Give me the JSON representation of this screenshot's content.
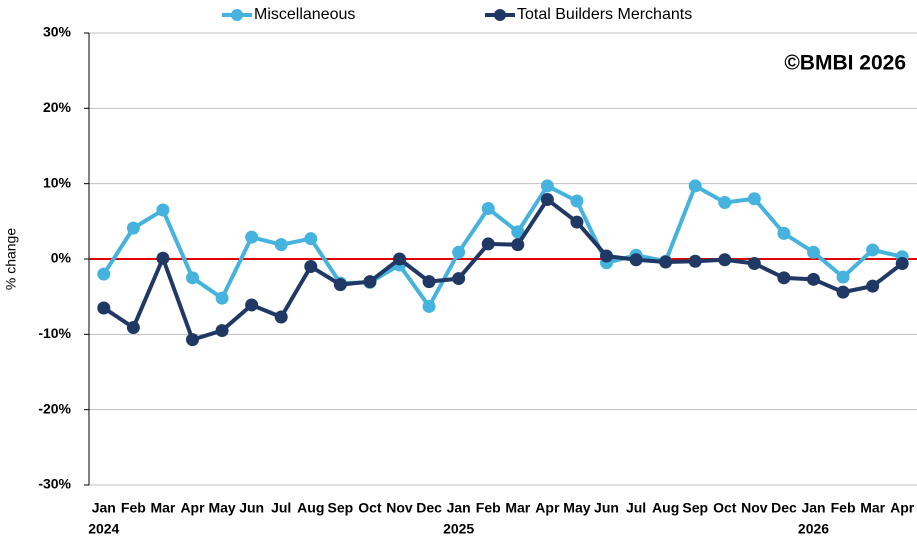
{
  "chart_data": {
    "type": "line",
    "y_label": "% change",
    "annotation": "©BMBI 2026",
    "categories": [
      "Jan",
      "Feb",
      "Mar",
      "Apr",
      "May",
      "Jun",
      "Jul",
      "Aug",
      "Sep",
      "Oct",
      "Nov",
      "Dec",
      "Jan",
      "Feb",
      "Mar",
      "Apr",
      "May",
      "Jun",
      "Jul",
      "Aug",
      "Sep",
      "Oct",
      "Nov",
      "Dec",
      "Jan",
      "Feb",
      "Mar",
      "Apr"
    ],
    "category_years": [
      "2024",
      null,
      null,
      null,
      null,
      null,
      null,
      null,
      null,
      null,
      null,
      null,
      "2025",
      null,
      null,
      null,
      null,
      null,
      null,
      null,
      null,
      null,
      null,
      null,
      "2026",
      null,
      null,
      null
    ],
    "series": [
      {
        "name": "Miscellaneous",
        "color": "#45b3dd",
        "values": [
          -2,
          4.1,
          6.5,
          -2.5,
          -5.2,
          2.9,
          1.9,
          2.7,
          -3.2,
          -3.1,
          -0.8,
          -6.3,
          0.9,
          6.7,
          3.6,
          9.7,
          7.7,
          -0.5,
          0.5,
          -0.3,
          9.7,
          7.5,
          8.0,
          3.4,
          0.9,
          -2.4,
          1.2,
          0.3
        ]
      },
      {
        "name": "Total Builders Merchants",
        "color": "#1f3864",
        "values": [
          -6.5,
          -9.1,
          0.1,
          -10.7,
          -9.5,
          -6.1,
          -7.7,
          -1.0,
          -3.4,
          -3.0,
          0.0,
          -3.0,
          -2.6,
          2.0,
          1.9,
          7.9,
          4.9,
          0.4,
          -0.1,
          -0.4,
          -0.3,
          -0.1,
          -0.6,
          -2.5,
          -2.7,
          -4.4,
          -3.6,
          -0.6
        ]
      }
    ],
    "ylim": [
      -30,
      30
    ],
    "yticks": [
      {
        "value": -30,
        "label": "-30%"
      },
      {
        "value": -20,
        "label": "-20%"
      },
      {
        "value": -10,
        "label": "-10%"
      },
      {
        "value": 0,
        "label": "0%"
      },
      {
        "value": 10,
        "label": "10%"
      },
      {
        "value": 20,
        "label": "20%"
      },
      {
        "value": 30,
        "label": "30%"
      }
    ],
    "grid": true,
    "zero_line_color": "#e00000",
    "legend": "top"
  }
}
